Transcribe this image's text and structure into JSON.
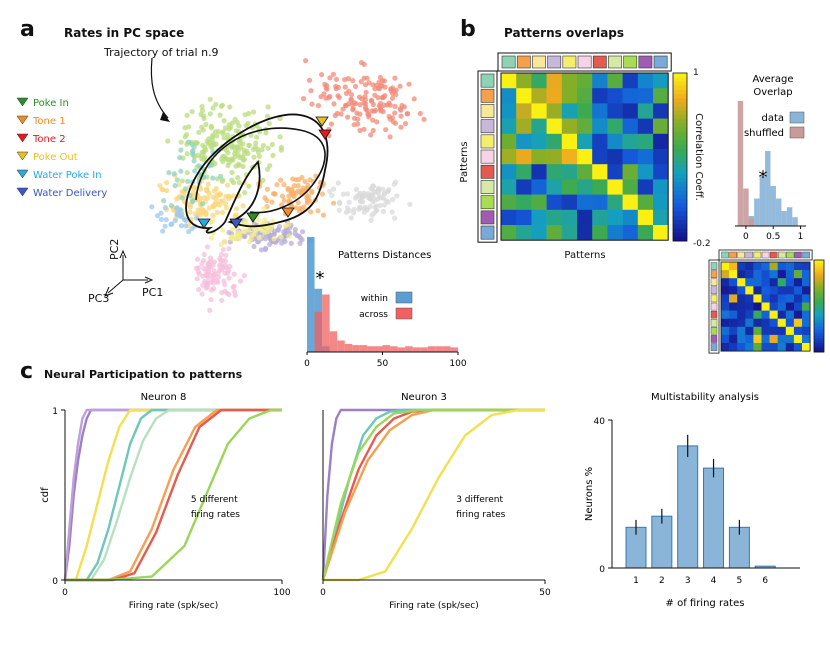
{
  "panels": {
    "a": {
      "letter": "a",
      "title": "Rates in PC space",
      "trajectory_label": "Trajectory of trial n.9",
      "legend": [
        {
          "label": "Poke In",
          "color": "#2e8b2e"
        },
        {
          "label": "Tone 1",
          "color": "#f28c28"
        },
        {
          "label": "Tone 2",
          "color": "#e41a1c"
        },
        {
          "label": "Poke Out",
          "color": "#e8c020"
        },
        {
          "label": "Water Poke In",
          "color": "#29a9e0"
        },
        {
          "label": "Water Delivery",
          "color": "#3a56c8"
        }
      ],
      "axes": {
        "pc1": "PC1",
        "pc2": "PC2",
        "pc3": "PC3"
      }
    },
    "b": {
      "letter": "b",
      "title": "Patterns overlaps",
      "ylabel": "Patterns",
      "xlabel": "Patterns",
      "colorbar_label": "Correlation Coeff.",
      "colorbar_max": "1",
      "colorbar_min": "-0.2",
      "pattern_colors": [
        "#8ed3b5",
        "#f5a04a",
        "#f9e79a",
        "#c7b8da",
        "#f4ee6a",
        "#f6d3e5",
        "#e35a4f",
        "#d6eaa5",
        "#a8dc55",
        "#9e5cb3",
        "#79a9d8"
      ]
    },
    "c": {
      "letter": "c",
      "title": "Neural Participation to patterns"
    }
  },
  "chart_data": [
    {
      "type": "bar",
      "title": "Patterns Distances",
      "xlim": [
        0,
        100
      ],
      "xticks": [
        "0",
        "50",
        "100"
      ],
      "star": "*",
      "series": [
        {
          "name": "within",
          "color": "#5a9fd4",
          "bins": [
            0,
            5,
            10
          ],
          "values": [
            1.0,
            0.55,
            0.05
          ]
        },
        {
          "name": "across",
          "color": "#f06060",
          "bins": [
            5,
            10,
            15,
            20,
            25,
            30,
            35,
            40,
            45,
            50,
            55,
            60,
            65,
            70,
            75,
            80,
            85,
            90,
            95
          ],
          "values": [
            0.35,
            0.5,
            0.18,
            0.1,
            0.07,
            0.06,
            0.06,
            0.05,
            0.05,
            0.06,
            0.05,
            0.04,
            0.05,
            0.04,
            0.04,
            0.05,
            0.05,
            0.05,
            0.04
          ]
        }
      ]
    },
    {
      "type": "bar",
      "title": "Average Overlap",
      "xticks": [
        "0",
        "0.5",
        "1"
      ],
      "xlim": [
        -0.2,
        1.1
      ],
      "star": "*",
      "series": [
        {
          "name": "data",
          "color": "#8ab4d8",
          "x": [
            0.1,
            0.2,
            0.3,
            0.4,
            0.5,
            0.6,
            0.7,
            0.8,
            0.9
          ],
          "values": [
            0.08,
            0.22,
            0.4,
            0.6,
            0.32,
            0.22,
            0.12,
            0.15,
            0.07
          ]
        },
        {
          "name": "shuffled",
          "color": "#c99a9a",
          "x": [
            -0.1,
            0.0,
            0.1
          ],
          "values": [
            1.0,
            0.3,
            0.06
          ]
        }
      ]
    },
    {
      "type": "line",
      "title": "Neuron 8",
      "xlabel": "Firing rate (spk/sec)",
      "ylabel": "cdf",
      "xlim": [
        0,
        100
      ],
      "ylim": [
        0,
        1
      ],
      "xticks": [
        "0",
        "100"
      ],
      "yticks": [
        "0",
        "1"
      ],
      "annotation": "5 different firing rates",
      "series": [
        {
          "color": "#9b7fc9",
          "x": [
            0,
            2,
            4,
            6,
            8,
            10,
            12
          ],
          "y": [
            0,
            0.2,
            0.5,
            0.7,
            0.85,
            0.95,
            1
          ]
        },
        {
          "color": "#c0a0d8",
          "x": [
            0,
            2,
            4,
            6,
            8,
            10
          ],
          "y": [
            0,
            0.3,
            0.6,
            0.8,
            0.95,
            1
          ]
        },
        {
          "color": "#f2e050",
          "x": [
            5,
            10,
            15,
            20,
            25,
            30
          ],
          "y": [
            0,
            0.2,
            0.45,
            0.7,
            0.9,
            1
          ]
        },
        {
          "color": "#6ec8b8",
          "x": [
            10,
            15,
            20,
            25,
            30,
            35,
            40
          ],
          "y": [
            0,
            0.1,
            0.3,
            0.55,
            0.8,
            0.95,
            1
          ]
        },
        {
          "color": "#b8e0c0",
          "x": [
            12,
            18,
            24,
            30,
            36,
            42,
            48
          ],
          "y": [
            0,
            0.12,
            0.35,
            0.6,
            0.82,
            0.95,
            1
          ]
        },
        {
          "color": "#f5a050",
          "x": [
            20,
            30,
            40,
            50,
            60,
            70
          ],
          "y": [
            0,
            0.05,
            0.3,
            0.65,
            0.9,
            1
          ]
        },
        {
          "color": "#e85a4f",
          "x": [
            22,
            32,
            42,
            52,
            62,
            72
          ],
          "y": [
            0,
            0.04,
            0.28,
            0.62,
            0.9,
            1
          ]
        },
        {
          "color": "#9ad65a",
          "x": [
            20,
            40,
            55,
            65,
            75,
            85,
            95
          ],
          "y": [
            0,
            0.02,
            0.2,
            0.5,
            0.8,
            0.95,
            1
          ]
        }
      ]
    },
    {
      "type": "line",
      "title": "Neuron 3",
      "xlabel": "Firing rate (spk/sec)",
      "xlim": [
        0,
        50
      ],
      "ylim": [
        0,
        1
      ],
      "xticks": [
        "0",
        "50"
      ],
      "annotation": "3 different firing rates",
      "series": [
        {
          "color": "#9b7fc9",
          "x": [
            0,
            1,
            2,
            3,
            4
          ],
          "y": [
            0,
            0.5,
            0.8,
            0.95,
            1
          ]
        },
        {
          "color": "#6ec8b8",
          "x": [
            0,
            3,
            6,
            9,
            12,
            15,
            18
          ],
          "y": [
            0,
            0.3,
            0.6,
            0.85,
            0.95,
            0.99,
            1
          ]
        },
        {
          "color": "#e85a4f",
          "x": [
            0,
            4,
            8,
            12,
            16,
            20,
            25
          ],
          "y": [
            0,
            0.35,
            0.65,
            0.85,
            0.95,
            0.99,
            1
          ]
        },
        {
          "color": "#f5a050",
          "x": [
            0,
            5,
            10,
            15,
            20,
            25
          ],
          "y": [
            0,
            0.4,
            0.7,
            0.88,
            0.97,
            1
          ]
        },
        {
          "color": "#9ad65a",
          "x": [
            0,
            4,
            8,
            12,
            16,
            22
          ],
          "y": [
            0,
            0.45,
            0.75,
            0.9,
            0.98,
            1
          ]
        },
        {
          "color": "#f2e050",
          "x": [
            8,
            14,
            20,
            26,
            32,
            38,
            44
          ],
          "y": [
            0,
            0.05,
            0.3,
            0.6,
            0.85,
            0.97,
            1
          ]
        }
      ]
    },
    {
      "type": "bar",
      "title": "Multistability analysis",
      "xlabel": "# of firing rates",
      "ylabel": "Neurons %",
      "categories": [
        "1",
        "2",
        "3",
        "4",
        "5",
        "6"
      ],
      "values": [
        11,
        14,
        33,
        27,
        11,
        0.5
      ],
      "errors": [
        2,
        2,
        3,
        2.5,
        2,
        0
      ],
      "ylim": [
        0,
        40
      ],
      "yticks": [
        "0",
        "40"
      ],
      "color": "#8ab4d8"
    }
  ]
}
